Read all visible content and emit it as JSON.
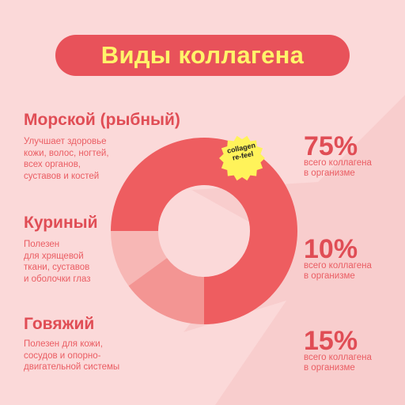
{
  "title": "Виды коллагена",
  "badge": {
    "text": "collagen\nre-feel",
    "color": "#fff35a"
  },
  "colors": {
    "background": "#fbd9d9",
    "accent": "#e8525a",
    "title_text": "#fff46a"
  },
  "types": [
    {
      "name": "Морской (рыбный)",
      "description": "Улучшает здоровье\nкожи, волос, ногтей,\nвсех органов,\nсуставов и костей"
    },
    {
      "name": "Куриный",
      "description": "Полезен\nдля хрящевой\nткани, суставов\nи оболочки глаз"
    },
    {
      "name": "Говяжий",
      "description": "Полезен для кожи,\nсосудов и опорно-\nдвигательной системы"
    }
  ],
  "stats": [
    {
      "value": "75%",
      "caption": "всего коллагена\nв организме"
    },
    {
      "value": "10%",
      "caption": "всего коллагена\nв организме"
    },
    {
      "value": "15%",
      "caption": "всего коллагена\nв организме"
    }
  ],
  "chart_data": {
    "type": "pie",
    "title": "",
    "categories": [
      "Морской (рыбный)",
      "Куриный",
      "Говяжий"
    ],
    "values": [
      75,
      10,
      15
    ],
    "colors": [
      "#ee5d60",
      "#f7b7b5",
      "#f39593"
    ],
    "donut": true
  }
}
